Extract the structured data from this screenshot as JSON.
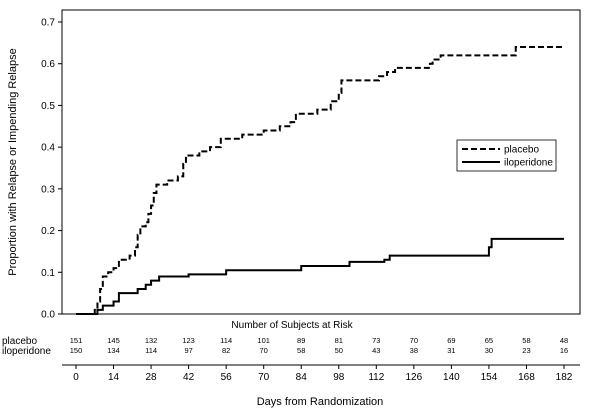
{
  "chart_data": {
    "type": "line",
    "step": true,
    "title": "",
    "xlabel": "Days from Randomization",
    "ylabel": "Proportion with Relapse or Impending Relapse",
    "xlim": [
      0,
      182
    ],
    "ylim": [
      0,
      0.7
    ],
    "x_ticks": [
      0,
      14,
      28,
      42,
      56,
      70,
      84,
      98,
      112,
      126,
      140,
      154,
      168,
      182
    ],
    "y_ticks": [
      0.0,
      0.1,
      0.2,
      0.3,
      0.4,
      0.5,
      0.6,
      0.7
    ],
    "y_tick_labels": [
      "0.0",
      "0.1",
      "0.2",
      "0.3",
      "0.4",
      "0.5",
      "0.6",
      "0.7"
    ],
    "grid": false,
    "legend_position": "right",
    "series": [
      {
        "name": "placebo",
        "line_style": "dashed",
        "points": [
          [
            0,
            0.0
          ],
          [
            6,
            0.0
          ],
          [
            7,
            0.01
          ],
          [
            8,
            0.03
          ],
          [
            9,
            0.06
          ],
          [
            10,
            0.09
          ],
          [
            12,
            0.1
          ],
          [
            14,
            0.11
          ],
          [
            16,
            0.13
          ],
          [
            20,
            0.14
          ],
          [
            22,
            0.16
          ],
          [
            23,
            0.19
          ],
          [
            24,
            0.21
          ],
          [
            26,
            0.22
          ],
          [
            27,
            0.24
          ],
          [
            28,
            0.26
          ],
          [
            29,
            0.29
          ],
          [
            30,
            0.31
          ],
          [
            34,
            0.32
          ],
          [
            38,
            0.33
          ],
          [
            40,
            0.36
          ],
          [
            41,
            0.38
          ],
          [
            46,
            0.39
          ],
          [
            50,
            0.4
          ],
          [
            54,
            0.42
          ],
          [
            62,
            0.43
          ],
          [
            70,
            0.44
          ],
          [
            76,
            0.45
          ],
          [
            80,
            0.46
          ],
          [
            82,
            0.48
          ],
          [
            90,
            0.49
          ],
          [
            95,
            0.51
          ],
          [
            98,
            0.53
          ],
          [
            99,
            0.56
          ],
          [
            113,
            0.57
          ],
          [
            116,
            0.58
          ],
          [
            119,
            0.59
          ],
          [
            132,
            0.6
          ],
          [
            133,
            0.61
          ],
          [
            136,
            0.62
          ],
          [
            164,
            0.64
          ],
          [
            182,
            0.64
          ]
        ]
      },
      {
        "name": "iloperidone",
        "line_style": "solid",
        "points": [
          [
            0,
            0.0
          ],
          [
            7,
            0.0
          ],
          [
            8,
            0.01
          ],
          [
            10,
            0.02
          ],
          [
            14,
            0.03
          ],
          [
            16,
            0.05
          ],
          [
            23,
            0.06
          ],
          [
            26,
            0.07
          ],
          [
            28,
            0.08
          ],
          [
            31,
            0.09
          ],
          [
            42,
            0.095
          ],
          [
            56,
            0.105
          ],
          [
            84,
            0.115
          ],
          [
            102,
            0.125
          ],
          [
            115,
            0.13
          ],
          [
            117,
            0.14
          ],
          [
            154,
            0.16
          ],
          [
            155,
            0.18
          ],
          [
            182,
            0.18
          ]
        ]
      }
    ],
    "risk_table": {
      "title": "Number of Subjects at Risk",
      "groups": [
        {
          "label": "placebo",
          "values": [
            "151",
            "145",
            "132",
            "123",
            "114",
            "101",
            "89",
            "81",
            "73",
            "70",
            "69",
            "65",
            "58",
            "48"
          ]
        },
        {
          "label": "iloperidone",
          "values": [
            "150",
            "134",
            "114",
            "97",
            "82",
            "70",
            "58",
            "50",
            "43",
            "38",
            "31",
            "30",
            "23",
            "16"
          ]
        }
      ]
    }
  }
}
